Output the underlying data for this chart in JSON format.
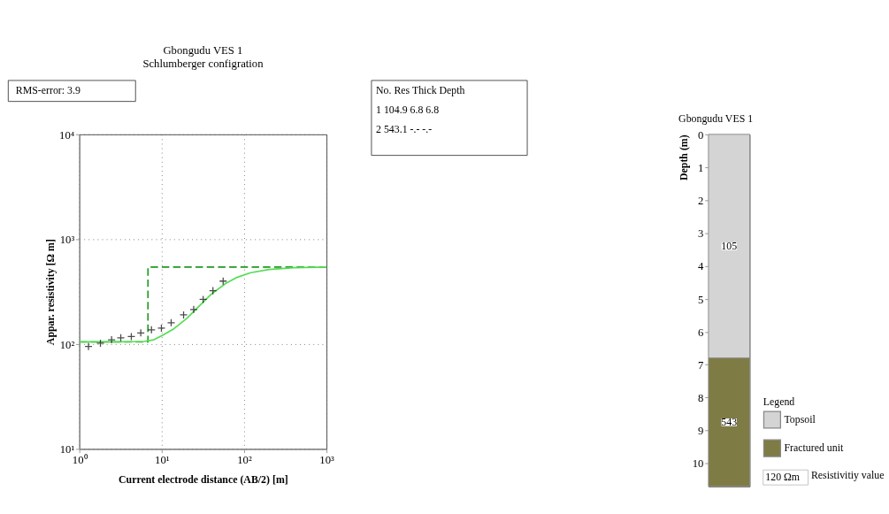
{
  "chart_data": [
    {
      "type": "line",
      "title": "Gbongudu VES 1",
      "subtitle": "Schlumberger configration",
      "xlabel": "Current electrode distance (AB/2) [m]",
      "ylabel": "Appar. resistivity  [Ω m]",
      "log": "xy",
      "grid": true,
      "xlim": [
        1,
        1000
      ],
      "ylim": [
        10,
        10000
      ],
      "xticks": [
        {
          "value": 1,
          "label": "10⁰"
        },
        {
          "value": 10,
          "label": "10¹"
        },
        {
          "value": 100,
          "label": "10²"
        },
        {
          "value": 1000,
          "label": "10³"
        }
      ],
      "yticks": [
        {
          "value": 10,
          "label": "10¹"
        },
        {
          "value": 100,
          "label": "10²"
        },
        {
          "value": 1000,
          "label": "10³"
        },
        {
          "value": 10000,
          "label": "10⁴"
        }
      ],
      "annotations": [
        "RMS-error: 3.9",
        "No.   Res     Thick   Depth",
        "1     104.9    6.8      6.8",
        "2     543.1    -.-        -.-"
      ],
      "series": [
        {
          "type": "step",
          "color": "#229922",
          "line_style": "dashed",
          "marker": "none",
          "x": [
            1,
            6.8,
            1000
          ],
          "values": [
            104.9,
            543.1,
            543.1
          ]
        },
        {
          "type": "line",
          "color": "#55dd55",
          "line_style": "solid",
          "marker": "none",
          "x": [
            1,
            3,
            6,
            8,
            10,
            14,
            20,
            30,
            40,
            60,
            80,
            120,
            200,
            400,
            1000
          ],
          "values": [
            105,
            105,
            106,
            110,
            120,
            140,
            175,
            240,
            300,
            380,
            430,
            480,
            515,
            535,
            543
          ]
        },
        {
          "type": "scatter",
          "color": "#000000",
          "marker": "cross",
          "x": [
            1.29,
            1.8,
            2.46,
            3.18,
            4.27,
            5.56,
            7.5,
            9.9,
            13,
            18.4,
            24.4,
            31.8,
            41.8,
            55.6
          ],
          "values": [
            95,
            102,
            110,
            115,
            118,
            128,
            137,
            142,
            160,
            190,
            214,
            267,
            323,
            399
          ]
        }
      ]
    },
    {
      "type": "bar",
      "stacked": true,
      "title": "Gbongudu VES 1",
      "ylabel": "Depth (m)",
      "legend_title": "Legend",
      "legend": "bottom right",
      "tick_labels": "y",
      "categories": [
        null
      ],
      "ylim": [
        10.7,
        0
      ],
      "yticks": [
        0,
        1,
        2,
        3,
        4,
        5,
        6,
        7,
        8,
        9,
        10
      ],
      "annotations": [
        {
          "text": "105",
          "y": 3.4
        },
        {
          "text": "543",
          "y": 8.75
        },
        "120 Ωm",
        "Resistivitiy value"
      ],
      "series": [
        {
          "name": "Topsoil",
          "color": "#d4d4d4",
          "values": [
            6.8
          ]
        },
        {
          "name": "Fractured unit",
          "color": "#7e7b45",
          "values": [
            3.9
          ]
        }
      ]
    }
  ]
}
